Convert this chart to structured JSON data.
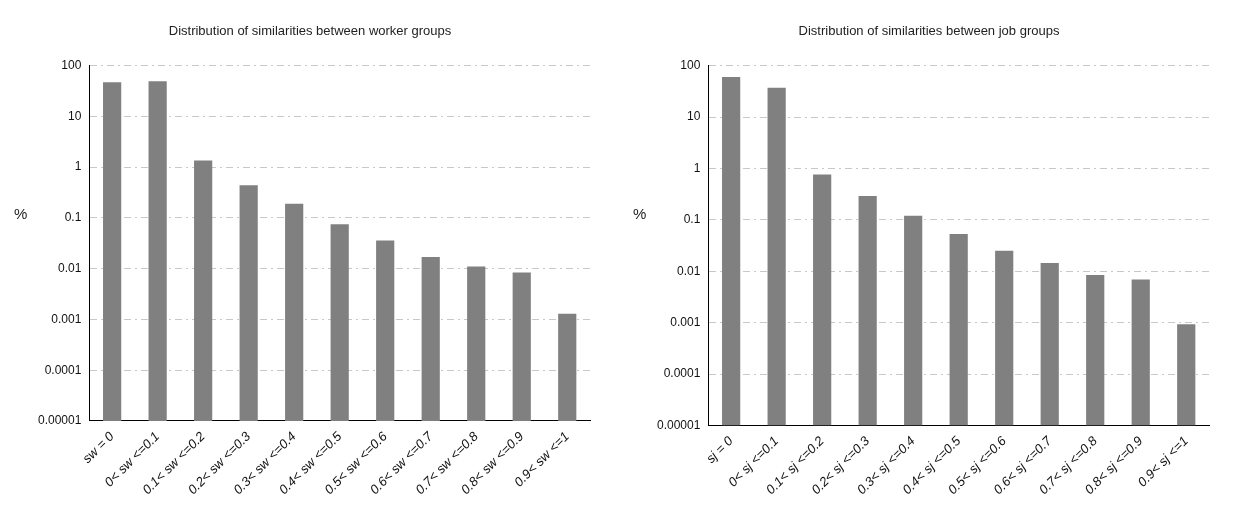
{
  "chart_data": [
    {
      "type": "bar",
      "title": "Distribution of similarities between worker groups",
      "ylabel": "%",
      "categories": [
        "sw = 0",
        "0< sw <=0.1",
        "0.1< sw <=0.2",
        "0.2< sw <=0.3",
        "0.3< sw <=0.4",
        "0.4< sw <=0.5",
        "0.5< sw <=0.6",
        "0.6< sw <=0.7",
        "0.7< sw <=0.8",
        "0.8< sw <=0.9",
        "0.9< sw <=1"
      ],
      "values": [
        47,
        49,
        1.35,
        0.44,
        0.19,
        0.075,
        0.036,
        0.017,
        0.011,
        0.0084,
        0.0013
      ],
      "color": "#808080",
      "log": true,
      "ylim": [
        1e-05,
        100
      ],
      "yticks": [
        {
          "value": 1e-05,
          "label": "0.00001"
        },
        0.0001,
        0.001,
        0.01,
        0.1,
        1,
        10,
        100
      ],
      "grid": "y",
      "legend": false
    },
    {
      "type": "bar",
      "title": "Distribution of similarities between job groups",
      "ylabel": "%",
      "categories": [
        "sj = 0",
        "0< sj <=0.1",
        "0.1< sj <=0.2",
        "0.2< sj <=0.3",
        "0.3< sj <=0.4",
        "0.4< sj <=0.5",
        "0.5< sj <=0.6",
        "0.6< sj <=0.7",
        "0.7< sj <=0.8",
        "0.8< sj <=0.9",
        "0.9< sj <=1"
      ],
      "values": [
        60,
        37,
        0.76,
        0.29,
        0.12,
        0.053,
        0.025,
        0.0145,
        0.0085,
        0.0069,
        0.00093
      ],
      "color": "#808080",
      "log": true,
      "ylim": [
        1e-05,
        100
      ],
      "yticks": [
        {
          "value": 1e-05,
          "label": "0.00001"
        },
        0.0001,
        0.001,
        0.01,
        0.1,
        1,
        10,
        100
      ],
      "grid": "y",
      "legend": false
    }
  ]
}
